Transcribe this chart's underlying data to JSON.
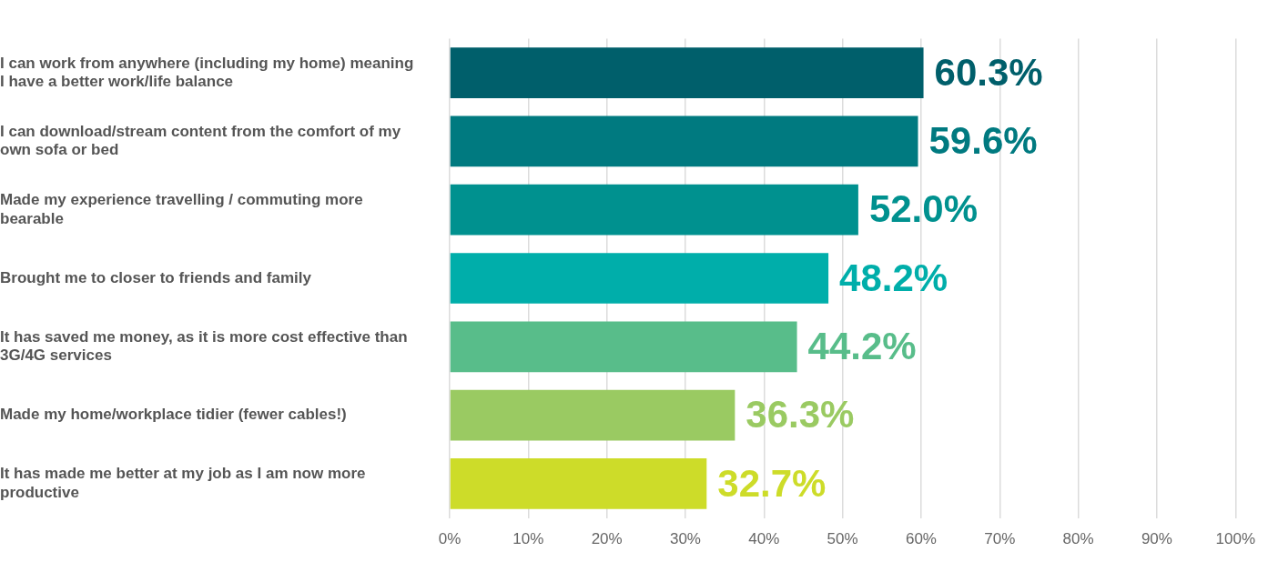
{
  "chart_data": {
    "type": "bar",
    "orientation": "horizontal",
    "categories": [
      "I can work from anywhere (including my home) meaning I have a better work/life balance",
      "I can download/stream content from the comfort of my own sofa or bed",
      "Made my experience travelling / commuting more bearable",
      "Brought me to closer to friends and family",
      "It has saved me money, as it is more cost effective than 3G/4G services",
      "Made my home/workplace tidier (fewer cables!)",
      "It has made me better at my job as I am now more productive"
    ],
    "values": [
      60.3,
      59.6,
      52.0,
      48.2,
      44.2,
      36.3,
      32.7
    ],
    "colors": [
      "#005f6b",
      "#007a80",
      "#00918f",
      "#00aeaa",
      "#58bd8a",
      "#9aca62",
      "#cddc29"
    ],
    "value_labels": [
      "60.3%",
      "59.6%",
      "52.0%",
      "48.2%",
      "44.2%",
      "36.3%",
      "32.7%"
    ],
    "xlim": [
      0,
      100
    ],
    "xticks": [
      {
        "value": 0,
        "label": "0%"
      },
      {
        "value": 10,
        "label": "10%"
      },
      {
        "value": 20,
        "label": "20%"
      },
      {
        "value": 30,
        "label": "30%"
      },
      {
        "value": 40,
        "label": "40%"
      },
      {
        "value": 50,
        "label": "50%"
      },
      {
        "value": 60,
        "label": "60%"
      },
      {
        "value": 70,
        "label": "70%"
      },
      {
        "value": 80,
        "label": "80%"
      },
      {
        "value": 90,
        "label": "90%"
      },
      {
        "value": 100,
        "label": "100%"
      }
    ],
    "grid": "x",
    "legend": false
  }
}
